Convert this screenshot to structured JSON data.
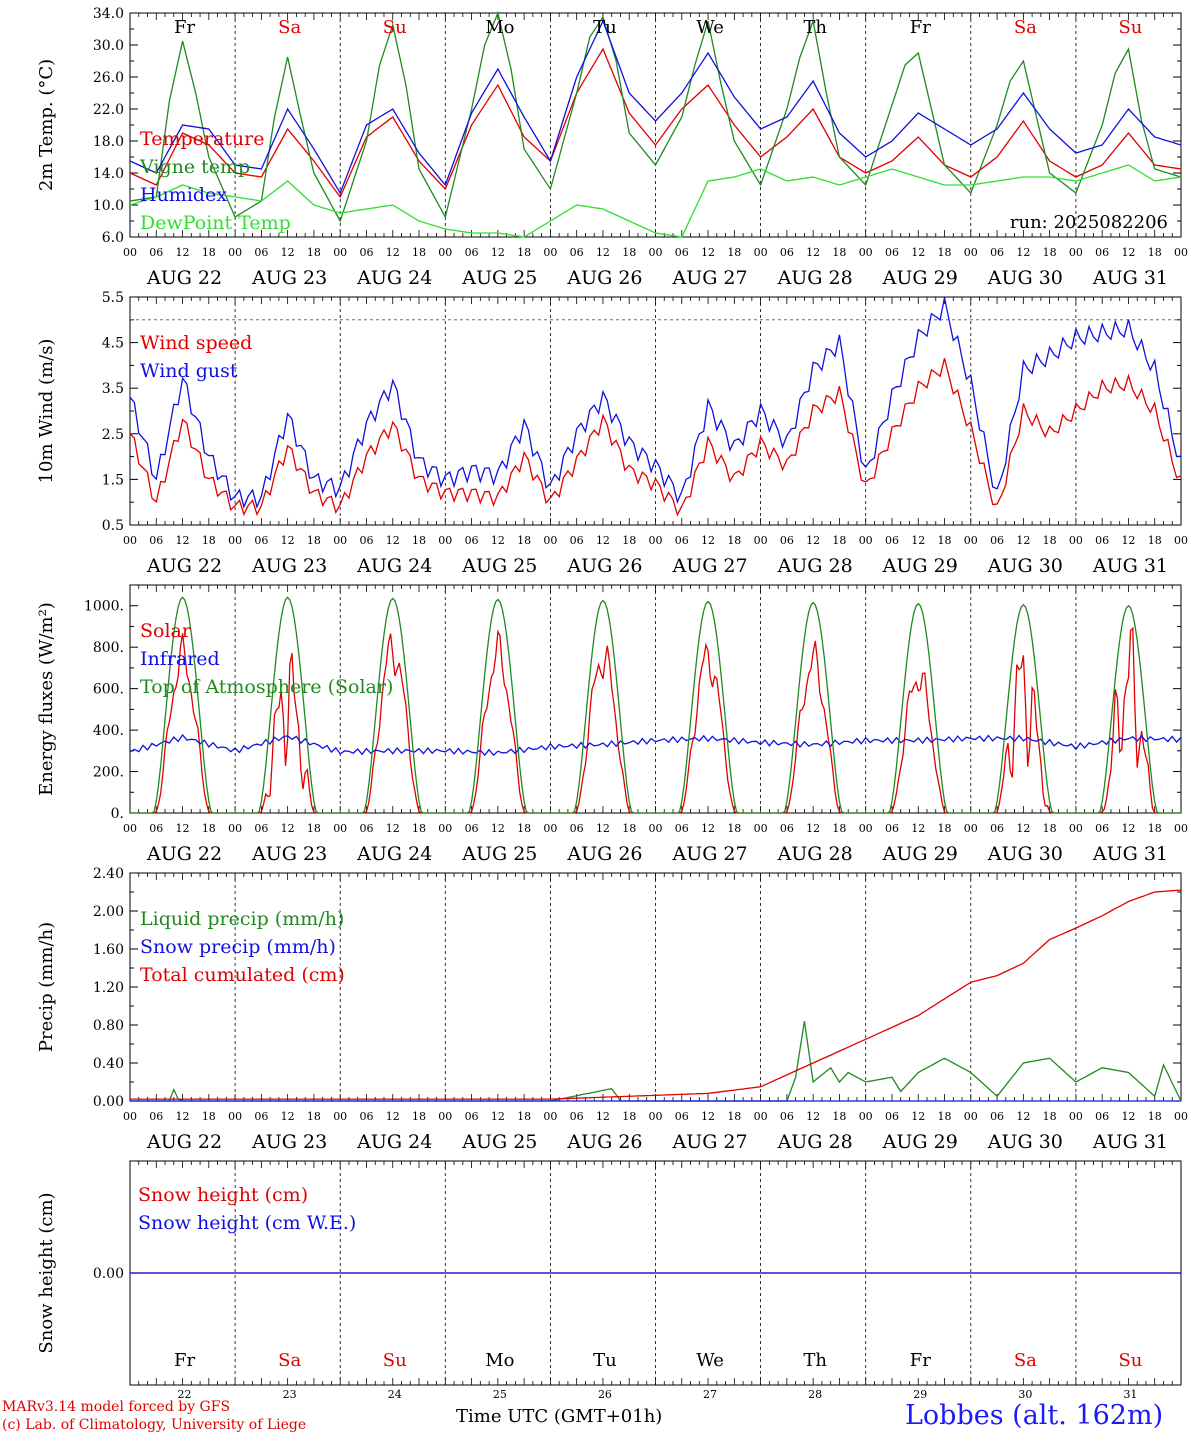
{
  "colors": {
    "red": "#e00000",
    "blue": "#1010e0",
    "green": "#208a20",
    "light_green": "#30e030",
    "black": "#000000"
  },
  "footer": {
    "credit_line1": "MARv3.14 model forced by GFS",
    "credit_line2": "(c) Lab. of Climatology, University of Liege",
    "x_title": "Time UTC (GMT+01h)",
    "station": "Lobbes (alt. 162m)"
  },
  "run_label": "run: 2025082206",
  "day_names": [
    "Fr",
    "Sa",
    "Su",
    "Mo",
    "Tu",
    "We",
    "Th",
    "Fr",
    "Sa",
    "Su"
  ],
  "weekend_flags": [
    false,
    true,
    true,
    false,
    false,
    false,
    false,
    false,
    true,
    true
  ],
  "date_labels": [
    "AUG 22",
    "AUG 23",
    "AUG 24",
    "AUG 25",
    "AUG 26",
    "AUG 27",
    "AUG 28",
    "AUG 29",
    "AUG 30",
    "AUG 31"
  ],
  "day_numbers": [
    "22",
    "23",
    "24",
    "25",
    "26",
    "27",
    "28",
    "29",
    "30",
    "31"
  ],
  "hour_labels": [
    "00",
    "06",
    "12",
    "18"
  ],
  "chart_data": [
    {
      "type": "line",
      "ylabel": "2m Temp. (°C)",
      "ylim": [
        6.0,
        34.0
      ],
      "yticks": [
        "6.0",
        "10.0",
        "14.0",
        "18.0",
        "22.0",
        "26.0",
        "30.0",
        "34.0"
      ],
      "x_unit": "hours since 2025-08-22 00 UTC",
      "series": [
        {
          "name": "Temperature",
          "color": "red",
          "x": [
            0,
            6,
            12,
            18,
            24,
            30,
            36,
            42,
            48,
            54,
            60,
            66,
            72,
            78,
            84,
            90,
            96,
            102,
            108,
            114,
            120,
            126,
            132,
            138,
            144,
            150,
            156,
            162,
            168,
            174,
            180,
            186,
            192,
            198,
            204,
            210,
            216,
            222,
            228,
            234,
            240
          ],
          "values": [
            14.0,
            12.5,
            19.0,
            17.5,
            14.0,
            13.5,
            19.5,
            15.5,
            11.0,
            18.5,
            21.0,
            15.5,
            12.0,
            20.0,
            25.0,
            18.5,
            15.5,
            24.0,
            29.5,
            21.5,
            17.5,
            22.0,
            25.0,
            20.0,
            16.0,
            18.5,
            22.0,
            16.0,
            14.0,
            15.5,
            18.5,
            15.0,
            13.5,
            16.0,
            20.5,
            15.5,
            13.5,
            15.0,
            19.0,
            15.0,
            14.5
          ]
        },
        {
          "name": "Vigne temp",
          "color": "green",
          "x": [
            0,
            6,
            9,
            12,
            15,
            18,
            24,
            30,
            33,
            36,
            39,
            42,
            48,
            54,
            57,
            60,
            63,
            66,
            72,
            78,
            81,
            84,
            87,
            90,
            96,
            102,
            105,
            108,
            111,
            114,
            120,
            126,
            129,
            132,
            135,
            138,
            144,
            150,
            153,
            156,
            159,
            162,
            168,
            174,
            177,
            180,
            183,
            186,
            192,
            198,
            201,
            204,
            207,
            210,
            216,
            222,
            225,
            228,
            231,
            234,
            240
          ],
          "values": [
            10.5,
            11.0,
            23.0,
            30.5,
            24.0,
            16.0,
            8.5,
            10.5,
            21.0,
            28.5,
            21.0,
            14.0,
            8.0,
            18.0,
            27.5,
            32.5,
            25.0,
            14.5,
            8.5,
            22.0,
            30.0,
            34.0,
            27.0,
            17.0,
            12.0,
            24.0,
            31.0,
            33.5,
            28.0,
            19.0,
            15.0,
            21.0,
            27.5,
            33.0,
            25.0,
            18.0,
            12.5,
            22.0,
            28.5,
            33.0,
            24.0,
            16.0,
            12.5,
            22.5,
            27.5,
            29.0,
            22.0,
            15.0,
            11.5,
            20.0,
            25.5,
            28.0,
            21.0,
            14.0,
            11.5,
            20.0,
            26.5,
            29.5,
            20.5,
            14.5,
            13.5
          ]
        },
        {
          "name": "Humidex",
          "color": "blue",
          "x": [
            0,
            6,
            12,
            18,
            24,
            30,
            36,
            42,
            48,
            54,
            60,
            66,
            72,
            78,
            84,
            90,
            96,
            102,
            108,
            114,
            120,
            126,
            132,
            138,
            144,
            150,
            156,
            162,
            168,
            174,
            180,
            186,
            192,
            198,
            204,
            210,
            216,
            222,
            228,
            234,
            240
          ],
          "values": [
            15.5,
            14.0,
            20.0,
            19.5,
            15.0,
            14.5,
            22.0,
            17.0,
            11.5,
            20.0,
            22.0,
            16.5,
            12.5,
            21.5,
            27.0,
            21.0,
            15.5,
            26.0,
            33.0,
            24.0,
            20.5,
            24.0,
            29.0,
            23.5,
            19.5,
            21.0,
            25.5,
            19.0,
            16.0,
            18.0,
            21.5,
            19.5,
            17.5,
            19.5,
            24.0,
            19.5,
            16.5,
            17.5,
            22.0,
            18.5,
            17.5
          ]
        },
        {
          "name": "DewPoint Temp",
          "color": "light_green",
          "x": [
            0,
            6,
            12,
            18,
            24,
            30,
            36,
            42,
            48,
            54,
            60,
            66,
            72,
            78,
            84,
            90,
            96,
            102,
            108,
            114,
            120,
            126,
            132,
            138,
            144,
            150,
            156,
            162,
            168,
            174,
            180,
            186,
            192,
            198,
            204,
            210,
            216,
            222,
            228,
            234,
            240
          ],
          "values": [
            10.0,
            11.0,
            12.5,
            11.5,
            11.0,
            10.5,
            13.0,
            10.0,
            9.0,
            9.5,
            10.0,
            8.0,
            7.0,
            6.5,
            6.5,
            6.0,
            8.0,
            10.0,
            9.5,
            8.0,
            6.5,
            6.0,
            13.0,
            13.5,
            14.5,
            13.0,
            13.5,
            12.5,
            13.5,
            14.5,
            13.5,
            12.5,
            12.5,
            13.0,
            13.5,
            13.5,
            13.0,
            14.0,
            15.0,
            13.0,
            13.5
          ]
        }
      ]
    },
    {
      "type": "line",
      "ylabel": "10m Wind (m/s)",
      "ylim": [
        0.5,
        5.5
      ],
      "yticks": [
        "0.5",
        "1.5",
        "2.5",
        "3.5",
        "4.5",
        "5.5"
      ],
      "reference_line": 5.0,
      "series": [
        {
          "name": "Wind speed",
          "color": "red",
          "x": [
            0,
            6,
            12,
            18,
            24,
            30,
            36,
            42,
            48,
            54,
            60,
            66,
            72,
            78,
            84,
            90,
            96,
            102,
            108,
            114,
            120,
            126,
            132,
            138,
            144,
            150,
            156,
            162,
            168,
            174,
            180,
            186,
            192,
            198,
            204,
            210,
            216,
            222,
            228,
            234,
            240
          ],
          "values": [
            2.5,
            1.0,
            2.8,
            1.5,
            0.9,
            0.9,
            2.2,
            1.2,
            0.9,
            2.0,
            2.7,
            1.5,
            1.2,
            1.2,
            1.1,
            2.0,
            1.0,
            1.9,
            2.8,
            1.7,
            1.4,
            0.8,
            2.3,
            1.5,
            2.3,
            1.8,
            3.0,
            3.4,
            1.3,
            2.5,
            3.5,
            4.0,
            2.6,
            0.8,
            3.0,
            2.5,
            3.0,
            3.5,
            3.6,
            3.0,
            1.4
          ]
        },
        {
          "name": "Wind gust",
          "color": "blue",
          "x": [
            0,
            6,
            12,
            18,
            24,
            30,
            36,
            42,
            48,
            54,
            60,
            66,
            72,
            78,
            84,
            90,
            96,
            102,
            108,
            114,
            120,
            126,
            132,
            138,
            144,
            150,
            156,
            162,
            168,
            174,
            180,
            186,
            192,
            198,
            204,
            210,
            216,
            222,
            228,
            234,
            240
          ],
          "values": [
            3.3,
            1.5,
            3.7,
            2.0,
            1.1,
            1.1,
            2.9,
            1.5,
            1.3,
            2.7,
            3.6,
            1.9,
            1.5,
            1.7,
            1.6,
            2.7,
            1.3,
            2.5,
            3.3,
            2.3,
            1.8,
            1.1,
            3.1,
            2.2,
            3.0,
            2.3,
            3.9,
            4.5,
            1.6,
            3.3,
            4.6,
            5.3,
            3.6,
            1.1,
            3.9,
            4.2,
            4.6,
            4.7,
            4.8,
            3.9,
            1.8
          ]
        }
      ]
    },
    {
      "type": "line",
      "ylabel": "Energy fluxes (W/m²)",
      "ylim": [
        0,
        1100
      ],
      "yticks": [
        "0.",
        "200.",
        "400.",
        "600.",
        "800.",
        "1000."
      ],
      "series": [
        {
          "name": "Solar",
          "color": "red",
          "peaks": [
            750,
            560,
            790,
            770,
            750,
            750,
            730,
            660,
            600,
            630
          ]
        },
        {
          "name": "Infrared",
          "color": "blue",
          "x": [
            0,
            12,
            24,
            36,
            48,
            60,
            72,
            84,
            96,
            108,
            120,
            132,
            144,
            156,
            168,
            180,
            192,
            204,
            216,
            228,
            240
          ],
          "values": [
            295,
            365,
            300,
            370,
            295,
            300,
            300,
            290,
            320,
            330,
            350,
            360,
            340,
            330,
            350,
            350,
            360,
            360,
            320,
            360,
            355
          ]
        },
        {
          "name": "Top of Atmosphere (Solar)",
          "color": "green",
          "peaks": [
            1040,
            1040,
            1035,
            1030,
            1025,
            1020,
            1015,
            1010,
            1005,
            1000
          ]
        }
      ]
    },
    {
      "type": "line",
      "ylabel": "Precip (mm/h)",
      "ylim": [
        0.0,
        2.4
      ],
      "yticks": [
        "0.00",
        "0.40",
        "0.80",
        "1.20",
        "1.60",
        "2.00",
        "2.40"
      ],
      "series": [
        {
          "name": "Liquid precip (mm/h)",
          "color": "green",
          "x": [
            0,
            9,
            10,
            11,
            12,
            96,
            110,
            112,
            114,
            150,
            152,
            154,
            156,
            160,
            162,
            164,
            168,
            174,
            176,
            180,
            186,
            192,
            198,
            204,
            210,
            216,
            222,
            228,
            234,
            236,
            240
          ],
          "values": [
            0,
            0,
            0.12,
            0.02,
            0,
            0,
            0.13,
            0.0,
            0,
            0,
            0.25,
            0.84,
            0.2,
            0.35,
            0.2,
            0.3,
            0.2,
            0.25,
            0.1,
            0.3,
            0.45,
            0.3,
            0.05,
            0.4,
            0.45,
            0.2,
            0.35,
            0.3,
            0.05,
            0.38,
            0.0
          ]
        },
        {
          "name": "Snow precip (mm/h)",
          "color": "blue",
          "x": [
            0,
            240
          ],
          "values": [
            0,
            0
          ]
        },
        {
          "name": "Total cumulated (cm)",
          "color": "red",
          "x": [
            0,
            24,
            48,
            72,
            96,
            114,
            132,
            144,
            156,
            168,
            180,
            192,
            198,
            204,
            210,
            216,
            222,
            228,
            234,
            240
          ],
          "values": [
            0.02,
            0.02,
            0.02,
            0.02,
            0.02,
            0.05,
            0.08,
            0.15,
            0.4,
            0.65,
            0.9,
            1.25,
            1.32,
            1.45,
            1.7,
            1.82,
            1.95,
            2.1,
            2.2,
            2.22
          ]
        }
      ]
    },
    {
      "type": "line",
      "ylabel": "Snow height (cm)",
      "yticks": [
        "0.00"
      ],
      "series": [
        {
          "name": "Snow height (cm)",
          "color": "red",
          "x": [
            0,
            240
          ],
          "values": [
            0,
            0
          ]
        },
        {
          "name": "Snow height (cm W.E.)",
          "color": "blue",
          "x": [
            0,
            240
          ],
          "values": [
            0,
            0
          ]
        }
      ]
    }
  ]
}
